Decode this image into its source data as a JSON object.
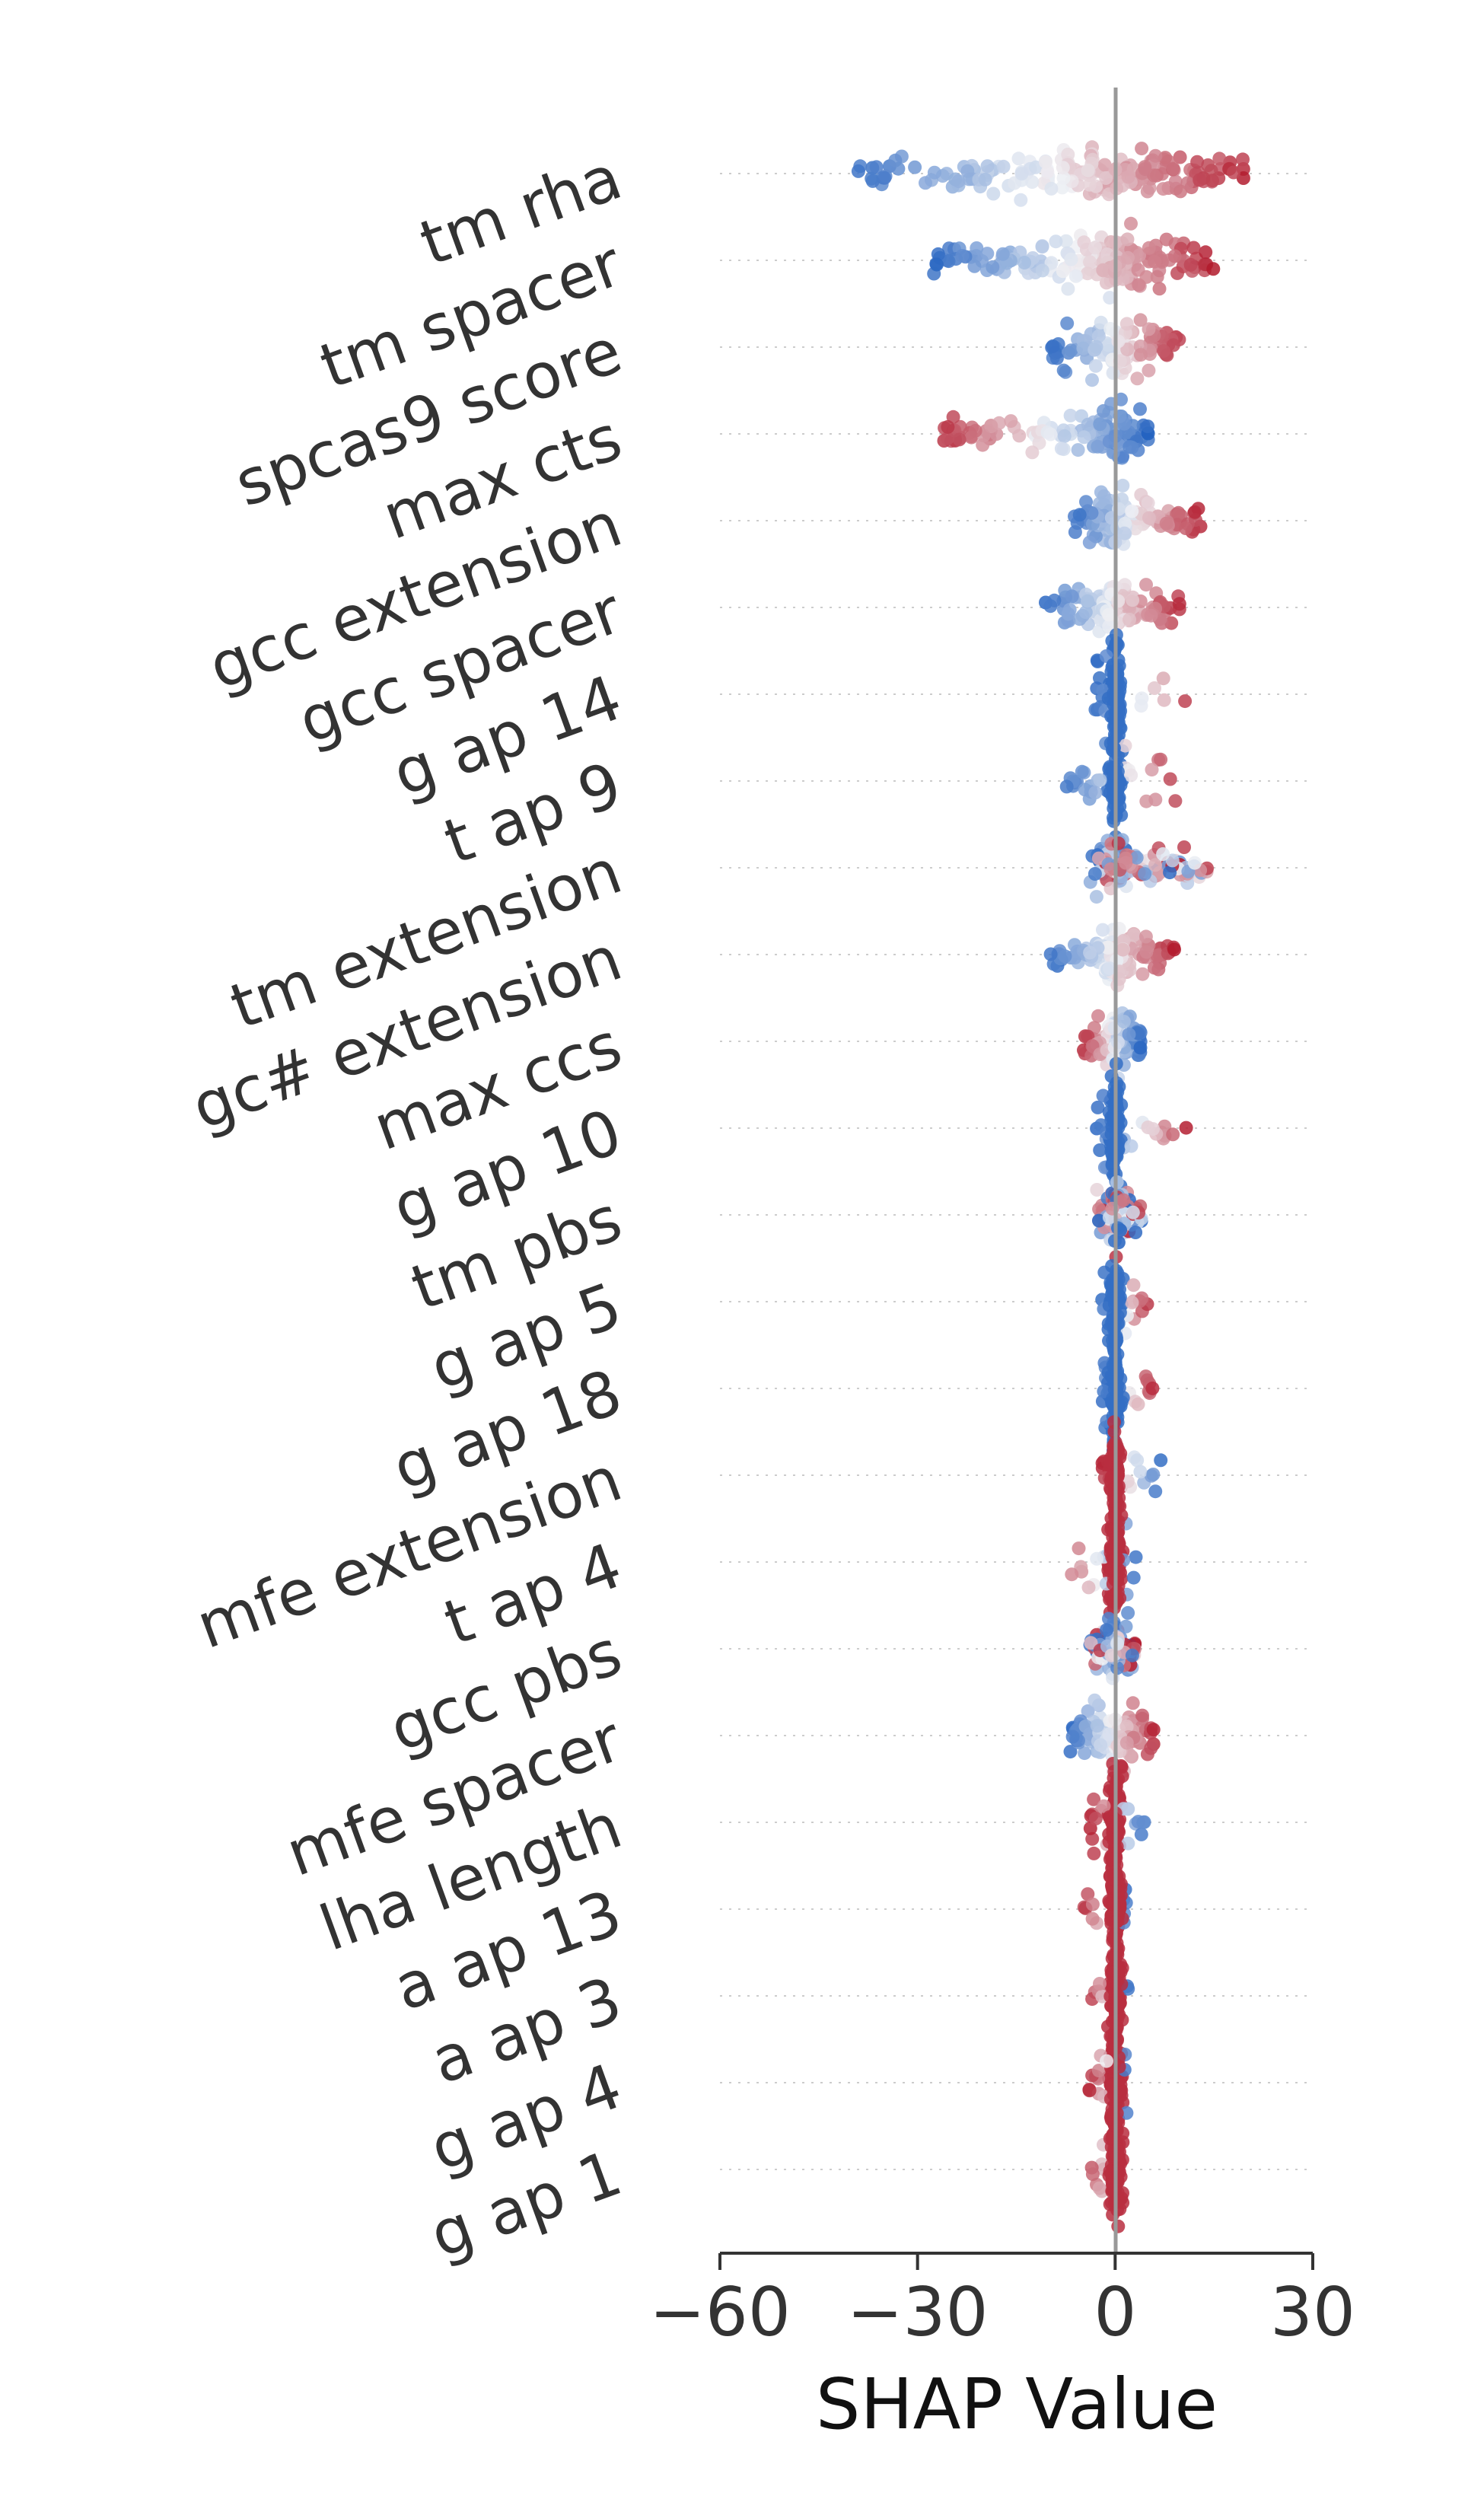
{
  "chart_data": {
    "type": "scatter",
    "subtype": "shap-beeswarm",
    "title": "",
    "xlabel": "SHAP Value",
    "ylabel": "",
    "xlim": [
      -60,
      30
    ],
    "xticks": [
      -60,
      -30,
      0,
      30
    ],
    "xtick_labels": [
      "−60",
      "−30",
      "0",
      "30"
    ],
    "colormap": {
      "low": "#1f5fbf",
      "mid": "#eef0f4",
      "high": "#b2182b"
    },
    "zero_line_color": "#999999",
    "features": [
      {
        "name": "tm rha",
        "min": -40,
        "max": 20,
        "neg": "blue",
        "spread": "wide"
      },
      {
        "name": "tm spacer",
        "min": -28,
        "max": 15,
        "neg": "blue",
        "spread": "wide"
      },
      {
        "name": "spcas9 score",
        "min": -10,
        "max": 10,
        "neg": "blue",
        "spread": "mid"
      },
      {
        "name": "max cts",
        "min": -27,
        "max": 5,
        "neg": "red",
        "spread": "mid"
      },
      {
        "name": "gcc extension",
        "min": -7,
        "max": 13,
        "neg": "blue",
        "spread": "mid"
      },
      {
        "name": "gcc spacer",
        "min": -11,
        "max": 10,
        "neg": "blue",
        "spread": "mid"
      },
      {
        "name": "g ap 14",
        "min": -3,
        "max": 12,
        "neg": "blue",
        "spread": "narrow"
      },
      {
        "name": "t ap 9",
        "min": -8,
        "max": 10,
        "neg": "blue",
        "spread": "narrow"
      },
      {
        "name": "tm extension",
        "min": -4,
        "max": 14,
        "neg": "mixed",
        "spread": "mid"
      },
      {
        "name": "gc# extension",
        "min": -10,
        "max": 9,
        "neg": "blue",
        "spread": "mid"
      },
      {
        "name": "max ccs",
        "min": -5,
        "max": 4,
        "neg": "red",
        "spread": "mid"
      },
      {
        "name": "g ap 10",
        "min": -3,
        "max": 11,
        "neg": "blue",
        "spread": "narrow"
      },
      {
        "name": "tm pbs",
        "min": -3,
        "max": 4,
        "neg": "mixed",
        "spread": "mid"
      },
      {
        "name": "g ap 5",
        "min": -2,
        "max": 5,
        "neg": "blue",
        "spread": "narrow"
      },
      {
        "name": "g ap 18",
        "min": -2,
        "max": 6,
        "neg": "blue",
        "spread": "narrow"
      },
      {
        "name": "mfe extension",
        "min": -2,
        "max": 7,
        "neg": "red",
        "spread": "narrow"
      },
      {
        "name": "t ap 4",
        "min": -9,
        "max": 4,
        "neg": "red",
        "spread": "narrow"
      },
      {
        "name": "gcc pbs",
        "min": -4,
        "max": 3,
        "neg": "mixed",
        "spread": "mid"
      },
      {
        "name": "mfe spacer",
        "min": -7,
        "max": 6,
        "neg": "blue",
        "spread": "mid"
      },
      {
        "name": "lha length",
        "min": -4,
        "max": 5,
        "neg": "red",
        "spread": "narrow"
      },
      {
        "name": "a ap 13",
        "min": -5,
        "max": 2,
        "neg": "red",
        "spread": "narrow"
      },
      {
        "name": "a ap 3",
        "min": -4,
        "max": 2,
        "neg": "red",
        "spread": "narrow"
      },
      {
        "name": "g ap 4",
        "min": -4,
        "max": 2,
        "neg": "red",
        "spread": "narrow"
      },
      {
        "name": "g ap 1",
        "min": -4,
        "max": 2,
        "neg": "red",
        "spread": "narrow"
      }
    ]
  }
}
